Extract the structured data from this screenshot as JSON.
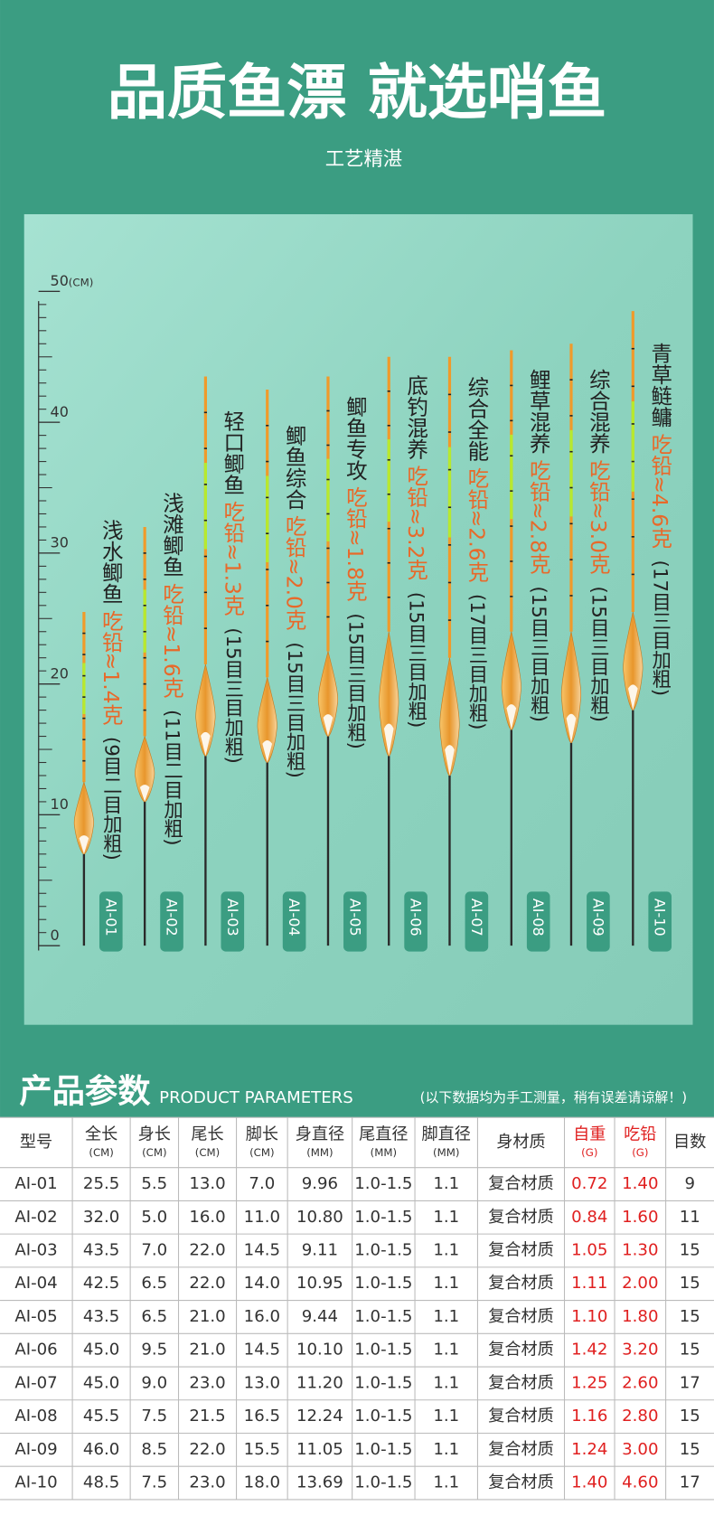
{
  "header": {
    "title": "品质鱼漂 就选哨鱼",
    "subtitle": "工艺精湛"
  },
  "ruler": {
    "unit": "(CM)",
    "ticks": [
      0,
      10,
      20,
      30,
      40,
      50
    ]
  },
  "floats": [
    {
      "id": "AI-01",
      "name": "浅水鲫鱼",
      "lead": "吃铅≈1.4克",
      "mesh": "(9目二目加粗)"
    },
    {
      "id": "AI-02",
      "name": "浅滩鲫鱼",
      "lead": "吃铅≈1.6克",
      "mesh": "(11目二目加粗)"
    },
    {
      "id": "AI-03",
      "name": "轻口鲫鱼",
      "lead": "吃铅≈1.3克",
      "mesh": "(15目三目加粗)"
    },
    {
      "id": "AI-04",
      "name": "鲫鱼综合",
      "lead": "吃铅≈2.0克",
      "mesh": "(15目三目加粗)"
    },
    {
      "id": "AI-05",
      "name": "鲫鱼专攻",
      "lead": "吃铅≈1.8克",
      "mesh": "(15目三目加粗)"
    },
    {
      "id": "AI-06",
      "name": "底钓混养",
      "lead": "吃铅≈3.2克",
      "mesh": "(15目三目加粗)"
    },
    {
      "id": "AI-07",
      "name": "综合全能",
      "lead": "吃铅≈2.6克",
      "mesh": "(17目三目加粗)"
    },
    {
      "id": "AI-08",
      "name": "鲤草混养",
      "lead": "吃铅≈2.8克",
      "mesh": "(15目三目加粗)"
    },
    {
      "id": "AI-09",
      "name": "综合混养",
      "lead": "吃铅≈3.0克",
      "mesh": "(15目三目加粗)"
    },
    {
      "id": "AI-10",
      "name": "青草鲢鳙",
      "lead": "吃铅≈4.6克",
      "mesh": "(17目三目加粗)"
    }
  ],
  "params": {
    "title": "产品参数",
    "subtitle": "PRODUCT PARAMETERS",
    "note": "(以下数据均为手工测量，稍有误差请谅解！)",
    "columns": [
      {
        "label": "型号"
      },
      {
        "label": "全长",
        "unit": "(CM)"
      },
      {
        "label": "身长",
        "unit": "(CM)"
      },
      {
        "label": "尾长",
        "unit": "(CM)"
      },
      {
        "label": "脚长",
        "unit": "(CM)"
      },
      {
        "label": "身直径",
        "unit": "(MM)"
      },
      {
        "label": "尾直径",
        "unit": "(MM)"
      },
      {
        "label": "脚直径",
        "unit": "(MM)"
      },
      {
        "label": "身材质"
      },
      {
        "label": "自重",
        "unit": "(G)"
      },
      {
        "label": "吃铅",
        "unit": "(G)"
      },
      {
        "label": "目数"
      }
    ],
    "rows": [
      [
        "AI-01",
        "25.5",
        "5.5",
        "13.0",
        "7.0",
        "9.96",
        "1.0-1.5",
        "1.1",
        "复合材质",
        "0.72",
        "1.40",
        "9"
      ],
      [
        "AI-02",
        "32.0",
        "5.0",
        "16.0",
        "11.0",
        "10.80",
        "1.0-1.5",
        "1.1",
        "复合材质",
        "0.84",
        "1.60",
        "11"
      ],
      [
        "AI-03",
        "43.5",
        "7.0",
        "22.0",
        "14.5",
        "9.11",
        "1.0-1.5",
        "1.1",
        "复合材质",
        "1.05",
        "1.30",
        "15"
      ],
      [
        "AI-04",
        "42.5",
        "6.5",
        "22.0",
        "14.0",
        "10.95",
        "1.0-1.5",
        "1.1",
        "复合材质",
        "1.11",
        "2.00",
        "15"
      ],
      [
        "AI-05",
        "43.5",
        "6.5",
        "21.0",
        "16.0",
        "9.44",
        "1.0-1.5",
        "1.1",
        "复合材质",
        "1.10",
        "1.80",
        "15"
      ],
      [
        "AI-06",
        "45.0",
        "9.5",
        "21.0",
        "14.5",
        "10.10",
        "1.0-1.5",
        "1.1",
        "复合材质",
        "1.42",
        "3.20",
        "15"
      ],
      [
        "AI-07",
        "45.0",
        "9.0",
        "23.0",
        "13.0",
        "11.20",
        "1.0-1.5",
        "1.1",
        "复合材质",
        "1.25",
        "2.60",
        "17"
      ],
      [
        "AI-08",
        "45.5",
        "7.5",
        "21.5",
        "16.5",
        "12.24",
        "1.0-1.5",
        "1.1",
        "复合材质",
        "1.16",
        "2.80",
        "15"
      ],
      [
        "AI-09",
        "46.0",
        "8.5",
        "22.0",
        "15.5",
        "11.05",
        "1.0-1.5",
        "1.1",
        "复合材质",
        "1.24",
        "3.00",
        "15"
      ],
      [
        "AI-10",
        "48.5",
        "7.5",
        "23.0",
        "18.0",
        "13.69",
        "1.0-1.5",
        "1.1",
        "复合材质",
        "1.40",
        "4.60",
        "17"
      ]
    ]
  }
}
